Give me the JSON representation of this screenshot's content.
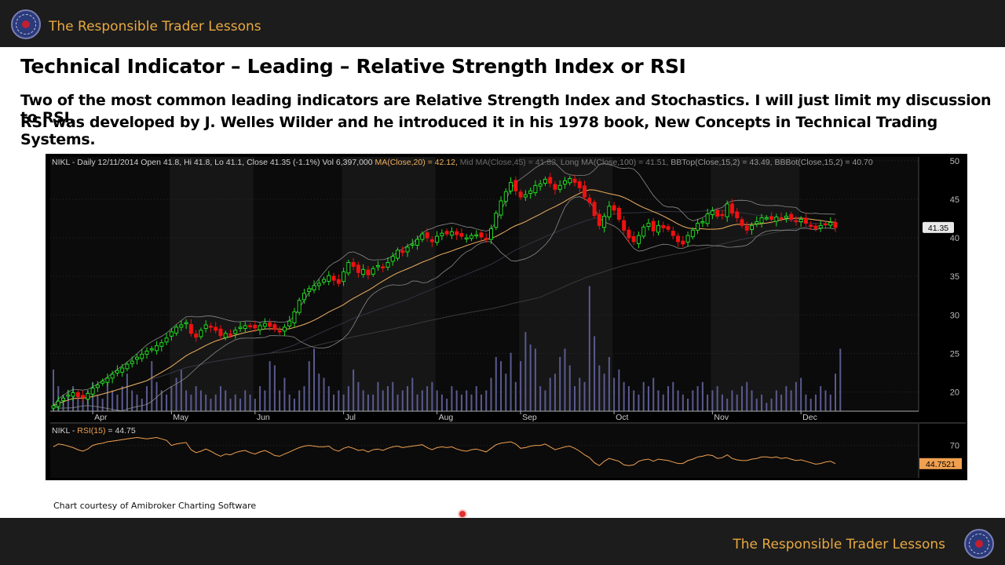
{
  "header": {
    "brand": "The Responsible Trader Lessons",
    "logo_icon": "responsible-trader-logo-icon"
  },
  "slide": {
    "title": "Technical Indicator – Leading – Relative Strength Index or RSI",
    "lines": [
      "Two of the most common leading indicators are Relative Strength Index and Stochastics. I will just limit my discussion to RSI.",
      "RSI was developed by J. Welles Wilder and he introduced it in his 1978 book, New Concepts in Technical Trading Systems."
    ],
    "caption": "Chart courtesy of Amibroker Charting Software"
  },
  "footer": {
    "brand": "The Responsible Trader Lessons",
    "logo_icon": "responsible-trader-logo-icon"
  },
  "colors": {
    "bar_bg": "#1c1c1c",
    "brand_text": "#e9a940",
    "up": "#22dd22",
    "down": "#ee1111",
    "ma": "#f0b060",
    "rsi": "#f0a050",
    "volume": "#5a5a90"
  },
  "chart_data": [
    {
      "type": "candlestick",
      "header_parts": [
        {
          "text": "NIKL - Daily 12/11/2014 Open 41.8, Hi 41.8, Lo 41.1, Close 41.35 (-1.1%) Vol 6,397,000 ",
          "color": "#cfcfcf"
        },
        {
          "text": "MA(Close,20) = 42.12, ",
          "color": "#f0b060"
        },
        {
          "text": "Mid MA(Close,45) = 41.82, ",
          "color": "#6a6a6a"
        },
        {
          "text": "Long MA(Close,100) = 41.51, ",
          "color": "#7a7a7a"
        },
        {
          "text": "BBTop(Close,15,2) = 43.49, ",
          "color": "#9a9a9a"
        },
        {
          "text": "BBBot(Close,15,2) = 40.70",
          "color": "#9a9a9a"
        }
      ],
      "months": [
        {
          "label": "Apr",
          "index": 8
        },
        {
          "label": "May",
          "index": 24
        },
        {
          "label": "Jun",
          "index": 41
        },
        {
          "label": "Jul",
          "index": 59
        },
        {
          "label": "Aug",
          "index": 78
        },
        {
          "label": "Sep",
          "index": 95
        },
        {
          "label": "Oct",
          "index": 114
        },
        {
          "label": "Nov",
          "index": 134
        },
        {
          "label": "Dec",
          "index": 152
        }
      ],
      "y_ticks": [
        "50",
        "45",
        "40",
        "35",
        "30",
        "25",
        "20"
      ],
      "ylim": [
        17.5,
        50.5
      ],
      "last_close_label": "41.35",
      "close": [
        18.2,
        18.8,
        19.2,
        19.6,
        19.9,
        19.4,
        19.3,
        19.8,
        20.5,
        20.9,
        21.4,
        21.8,
        22.3,
        22.8,
        23.1,
        23.6,
        24.0,
        24.5,
        24.9,
        25.3,
        25.6,
        26.0,
        26.4,
        27.0,
        27.8,
        28.4,
        28.7,
        29.0,
        27.6,
        27.1,
        28.0,
        28.7,
        28.4,
        28.0,
        27.3,
        27.6,
        27.5,
        28.0,
        28.4,
        28.6,
        28.5,
        28.3,
        28.6,
        28.9,
        28.5,
        28.1,
        27.9,
        28.4,
        29.2,
        30.4,
        31.9,
        32.8,
        33.4,
        33.8,
        34.1,
        34.6,
        35.1,
        34.5,
        34.1,
        35.6,
        36.8,
        36.3,
        35.5,
        35.9,
        35.2,
        36.0,
        36.4,
        36.2,
        36.8,
        37.6,
        38.4,
        38.1,
        38.8,
        39.2,
        39.8,
        40.5,
        40.0,
        39.5,
        40.2,
        40.6,
        40.5,
        40.8,
        40.4,
        40.2,
        40.0,
        40.3,
        40.4,
        40.1,
        39.8,
        41.2,
        43.2,
        44.8,
        46.0,
        47.2,
        46.1,
        45.3,
        45.6,
        46.1,
        46.8,
        47.0,
        47.6,
        47.1,
        46.3,
        46.8,
        47.4,
        47.7,
        47.2,
        46.5,
        45.3,
        44.6,
        42.9,
        41.6,
        42.8,
        44.1,
        43.6,
        42.4,
        41.0,
        40.0,
        39.5,
        40.3,
        41.4,
        41.9,
        40.9,
        41.6,
        41.3,
        41.1,
        40.3,
        39.5,
        39.2,
        40.3,
        41.0,
        41.9,
        42.1,
        43.1,
        43.5,
        42.8,
        42.9,
        44.4,
        43.2,
        42.6,
        41.6,
        41.0,
        41.6,
        42.1,
        42.6,
        42.6,
        42.4,
        42.7,
        42.5,
        42.8,
        42.4,
        42.1,
        42.4,
        41.9,
        41.6,
        41.2,
        41.6,
        41.8,
        42.0,
        41.35
      ],
      "volume_millions": [
        10,
        6,
        4,
        5,
        6,
        4,
        3,
        5,
        7,
        4,
        3,
        8,
        5,
        4,
        6,
        9,
        5,
        4,
        3,
        6,
        12,
        7,
        5,
        4,
        6,
        8,
        10,
        5,
        4,
        6,
        5,
        4,
        3,
        4,
        6,
        5,
        3,
        4,
        3,
        5,
        4,
        3,
        6,
        5,
        12,
        11,
        5,
        8,
        4,
        3,
        5,
        6,
        12,
        15,
        9,
        8,
        6,
        4,
        5,
        4,
        6,
        10,
        7,
        5,
        4,
        4,
        7,
        5,
        6,
        7,
        4,
        5,
        6,
        8,
        4,
        5,
        6,
        7,
        5,
        4,
        3,
        6,
        5,
        4,
        5,
        4,
        6,
        4,
        5,
        8,
        13,
        12,
        9,
        14,
        7,
        12,
        19,
        16,
        15,
        6,
        5,
        8,
        9,
        13,
        15,
        11,
        6,
        8,
        7,
        30,
        18,
        11,
        9,
        13,
        8,
        10,
        7,
        6,
        5,
        4,
        7,
        6,
        8,
        5,
        4,
        6,
        7,
        5,
        4,
        3,
        5,
        6,
        7,
        4,
        5,
        6,
        4,
        3,
        5,
        4,
        6,
        7,
        5,
        3,
        4,
        2,
        3,
        5,
        4,
        6,
        5,
        7,
        8,
        4,
        3,
        4,
        6,
        5,
        4,
        9,
        15
      ]
    },
    {
      "type": "line",
      "title": "NIKL - RSI(15) = 44.75",
      "title_parts": [
        {
          "text": "NIKL - ",
          "color": "#cfcfcf"
        },
        {
          "text": "RSI(15)",
          "color": "#f0a050"
        },
        {
          "text": " = 44.75",
          "color": "#cfcfcf"
        }
      ],
      "y_ticks": [
        "70"
      ],
      "ylim": [
        25,
        100
      ],
      "last_value_label": "44.7521",
      "values": [
        68,
        72,
        71,
        69,
        67,
        64,
        62,
        65,
        70,
        72,
        73,
        75,
        76,
        77,
        78,
        79,
        80,
        81,
        80,
        79,
        80,
        81,
        79,
        77,
        70,
        72,
        73,
        74,
        64,
        60,
        62,
        65,
        62,
        58,
        55,
        58,
        57,
        60,
        62,
        63,
        60,
        58,
        61,
        63,
        60,
        56,
        55,
        58,
        61,
        64,
        67,
        69,
        70,
        69,
        68,
        68,
        69,
        64,
        62,
        66,
        68,
        66,
        63,
        64,
        61,
        64,
        65,
        63,
        66,
        68,
        69,
        67,
        68,
        69,
        70,
        71,
        67,
        64,
        67,
        68,
        67,
        68,
        65,
        63,
        62,
        64,
        65,
        63,
        61,
        66,
        71,
        73,
        74,
        75,
        72,
        66,
        67,
        69,
        70,
        70,
        72,
        68,
        64,
        66,
        68,
        69,
        66,
        62,
        57,
        53,
        46,
        42,
        48,
        52,
        50,
        48,
        43,
        42,
        43,
        48,
        50,
        51,
        48,
        51,
        50,
        49,
        47,
        45,
        45,
        49,
        51,
        54,
        55,
        57,
        56,
        52,
        53,
        57,
        52,
        50,
        49,
        49,
        51,
        52,
        54,
        54,
        53,
        54,
        52,
        53,
        51,
        49,
        50,
        48,
        46,
        44,
        45,
        47,
        48,
        44.75
      ]
    }
  ]
}
